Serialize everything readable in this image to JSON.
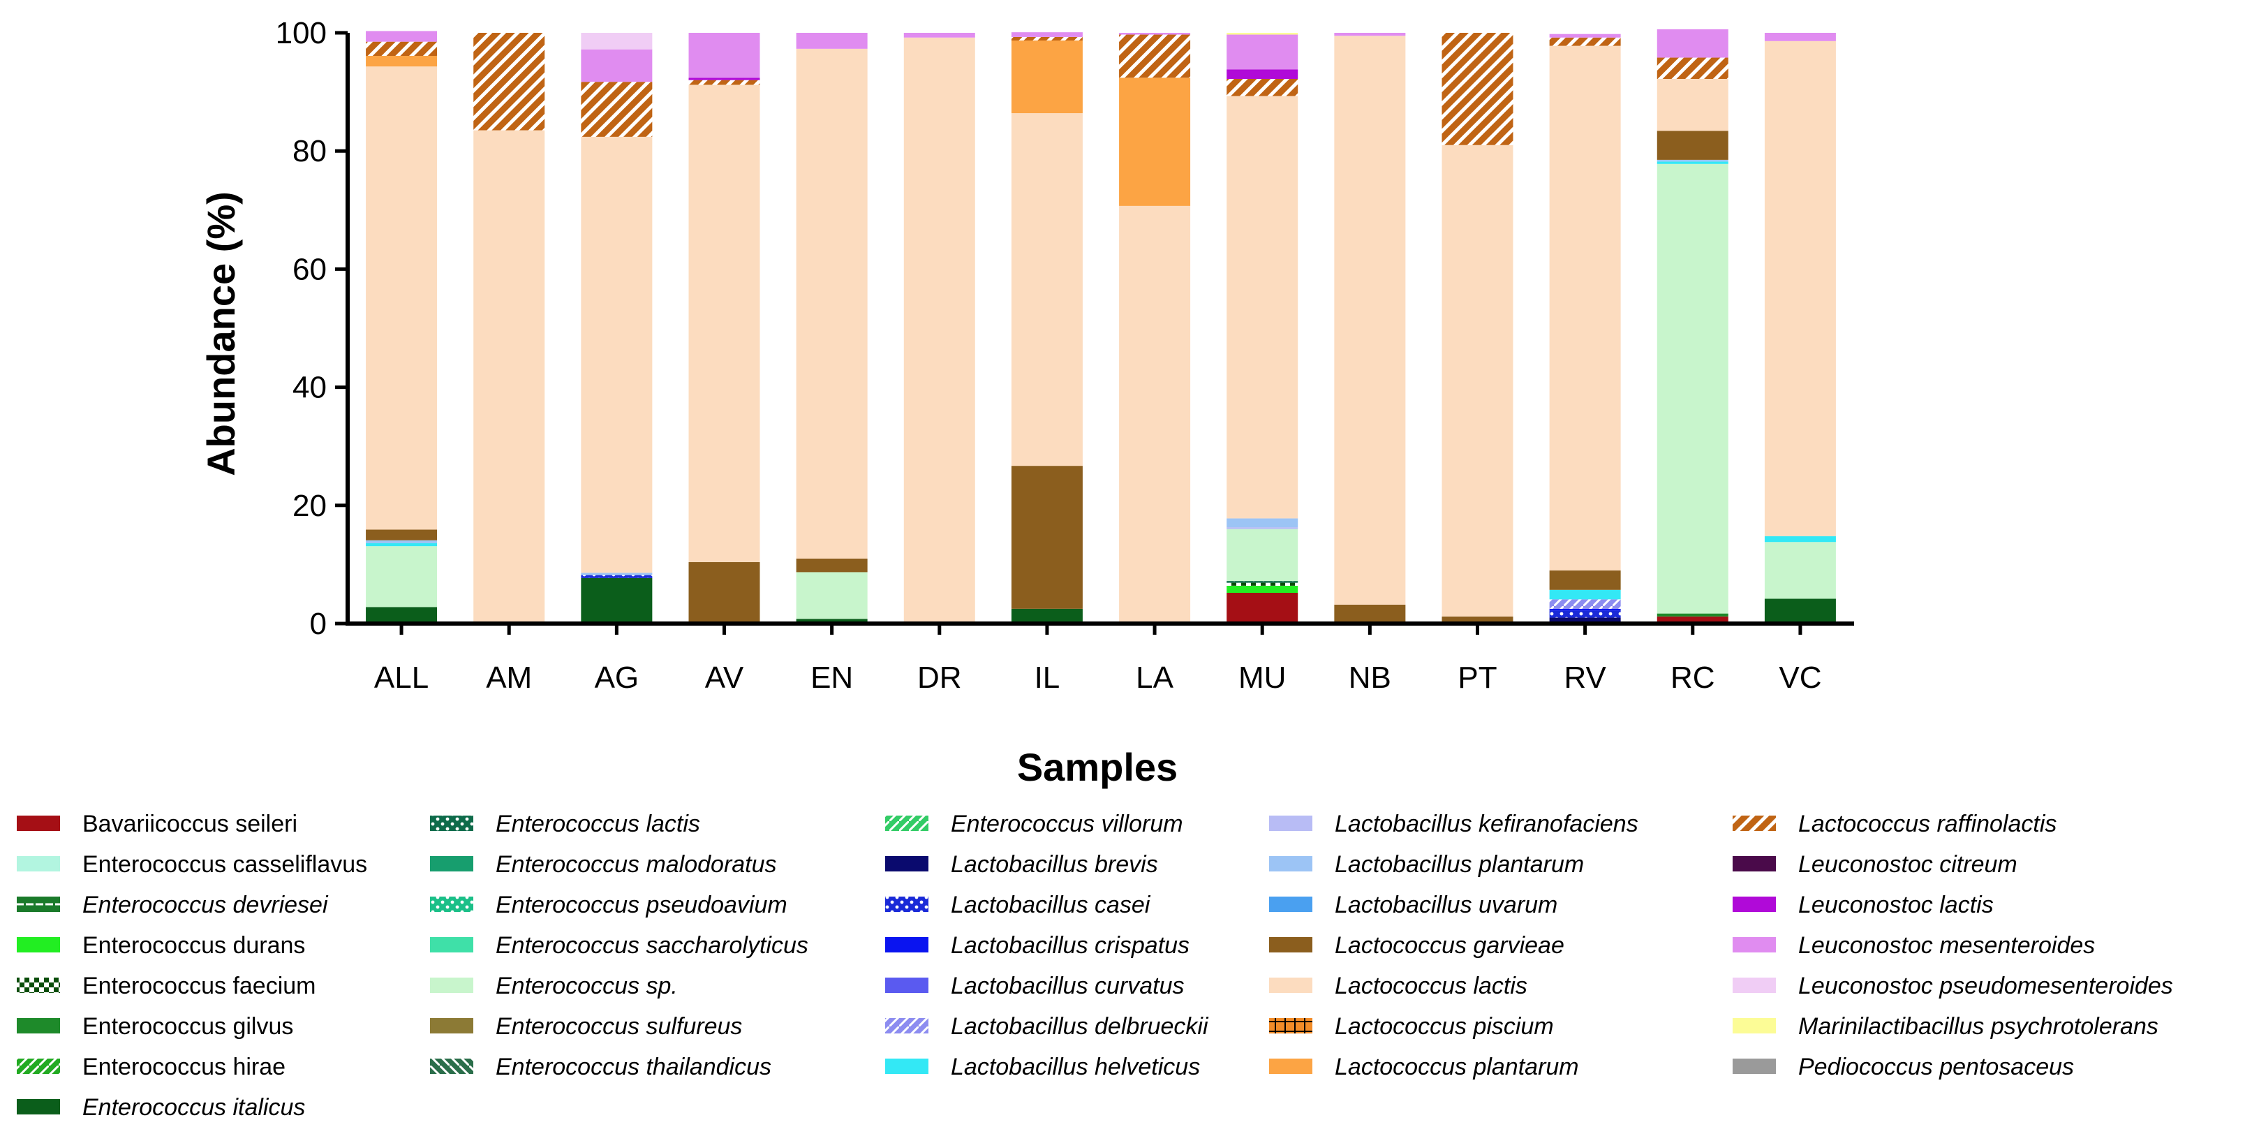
{
  "chart_data": {
    "type": "bar",
    "stacked": true,
    "title": "",
    "xlabel": "Samples",
    "ylabel": "Abundance (%)",
    "ylim": [
      0,
      100
    ],
    "yticks": [
      "0",
      "20",
      "40",
      "60",
      "80",
      "100"
    ],
    "grid": false,
    "legend_position": "bottom",
    "categories": [
      "ALL",
      "AM",
      "AG",
      "AV",
      "EN",
      "DR",
      "IL",
      "LA",
      "MU",
      "NB",
      "PT",
      "RV",
      "RC",
      "VC"
    ],
    "series": [
      {
        "name": "Bavariicoccus seileri",
        "italic": false,
        "color": "#a50f15",
        "pattern": "solid",
        "values": [
          0,
          0,
          0,
          0,
          0,
          0,
          0,
          0,
          5.2,
          0,
          0,
          0,
          1.2,
          0
        ]
      },
      {
        "name": "Enterococcus casseliflavus",
        "italic": false,
        "color": "#b2f5e0",
        "pattern": "solid",
        "values": [
          0,
          0,
          0,
          0,
          0,
          0,
          0,
          0,
          0,
          0,
          0,
          0,
          0,
          0
        ]
      },
      {
        "name": "Enterococcus devriesei",
        "italic": true,
        "color": "#1a7a2a",
        "pattern": "dash",
        "values": [
          0,
          0,
          0,
          0,
          0,
          0,
          0,
          0,
          0,
          0,
          0,
          0,
          0,
          0
        ]
      },
      {
        "name": "Enterococcus durans",
        "italic": false,
        "color": "#22ee22",
        "pattern": "solid",
        "values": [
          0,
          0,
          0,
          0,
          0,
          0,
          0,
          0,
          1.2,
          0,
          0,
          0,
          0,
          0
        ]
      },
      {
        "name": "Enterococcus faecium",
        "italic": false,
        "color": "#0a4d0a",
        "pattern": "checker",
        "values": [
          0,
          0,
          0,
          0,
          0,
          0,
          0,
          0,
          0.5,
          0,
          0,
          0,
          0,
          0
        ]
      },
      {
        "name": "Enterococcus gilvus",
        "italic": false,
        "color": "#1e8a2a",
        "pattern": "solid",
        "values": [
          0,
          0,
          0,
          0,
          0,
          0,
          0,
          0,
          0,
          0,
          0,
          0,
          0.5,
          0
        ]
      },
      {
        "name": "Enterococcus hirae",
        "italic": false,
        "color": "#22aa22",
        "pattern": "diag",
        "values": [
          0,
          0,
          0,
          0,
          0,
          0,
          0,
          0,
          0,
          0,
          0,
          0,
          0,
          0
        ]
      },
      {
        "name": "Enterococcus italicus",
        "italic": true,
        "color": "#0b5e1b",
        "pattern": "solid",
        "values": [
          2.8,
          0,
          7.7,
          0,
          0.8,
          0,
          2.5,
          0,
          0,
          0,
          0,
          0,
          0,
          4.2
        ]
      },
      {
        "name": "Enterococcus lactis",
        "italic": true,
        "color": "#0e6b4a",
        "pattern": "dots",
        "values": [
          0,
          0,
          0,
          0,
          0,
          0,
          0,
          0,
          0.3,
          0,
          0,
          0,
          0,
          0
        ]
      },
      {
        "name": "Enterococcus malodoratus",
        "italic": true,
        "color": "#179e6e",
        "pattern": "solid",
        "values": [
          0,
          0,
          0,
          0,
          0,
          0,
          0,
          0,
          0,
          0,
          0,
          0,
          0,
          0
        ]
      },
      {
        "name": "Enterococcus pseudoavium",
        "italic": true,
        "color": "#1bbf88",
        "pattern": "dots",
        "values": [
          0,
          0,
          0,
          0,
          0,
          0,
          0,
          0,
          0,
          0,
          0,
          0,
          0,
          0
        ]
      },
      {
        "name": "Enterococcus saccharolyticus",
        "italic": true,
        "color": "#3fe0a8",
        "pattern": "solid",
        "values": [
          0,
          0,
          0,
          0,
          0,
          0,
          0,
          0,
          0,
          0,
          0,
          0,
          0,
          0
        ]
      },
      {
        "name": "Enterococcus sp.",
        "italic": true,
        "color": "#c8f5cc",
        "pattern": "solid",
        "values": [
          10.3,
          0,
          0,
          0,
          7.9,
          0,
          0,
          0,
          8.8,
          0,
          0,
          0,
          76.1,
          9.6
        ]
      },
      {
        "name": "Enterococcus sulfureus",
        "italic": true,
        "color": "#8c7a35",
        "pattern": "solid",
        "values": [
          0,
          0,
          0,
          0,
          0,
          0,
          0,
          0,
          0,
          0,
          0,
          0,
          0,
          0
        ]
      },
      {
        "name": "Enterococcus thailandicus",
        "italic": true,
        "color": "#2a6e4a",
        "pattern": "revdiag",
        "values": [
          0,
          0,
          0,
          0,
          0,
          0,
          0,
          0,
          0,
          0,
          0,
          0,
          0,
          0
        ]
      },
      {
        "name": "Enterococcus villorum",
        "italic": true,
        "color": "#33cc66",
        "pattern": "diag",
        "values": [
          0,
          0,
          0,
          0,
          0,
          0,
          0,
          0,
          0,
          0,
          0,
          0,
          0,
          0
        ]
      },
      {
        "name": "Lactobacillus brevis",
        "italic": true,
        "color": "#0a0a6e",
        "pattern": "solid",
        "values": [
          0,
          0,
          0,
          0,
          0,
          0,
          0,
          0,
          0,
          0,
          0,
          1.0,
          0,
          0
        ]
      },
      {
        "name": "Lactobacillus casei",
        "italic": true,
        "color": "#1a2ad8",
        "pattern": "dots",
        "values": [
          0,
          0,
          0.5,
          0,
          0,
          0,
          0,
          0,
          0,
          0,
          0,
          1.2,
          0,
          0
        ]
      },
      {
        "name": "Lactobacillus crispatus",
        "italic": true,
        "color": "#0a14f0",
        "pattern": "solid",
        "values": [
          0,
          0,
          0,
          0,
          0,
          0,
          0,
          0,
          0,
          0,
          0,
          0.3,
          0,
          0
        ]
      },
      {
        "name": "Lactobacillus curvatus",
        "italic": true,
        "color": "#5a5af0",
        "pattern": "solid",
        "values": [
          0,
          0,
          0,
          0,
          0,
          0,
          0,
          0,
          0,
          0,
          0,
          0,
          0,
          0
        ]
      },
      {
        "name": "Lactobacillus delbrueckii",
        "italic": true,
        "color": "#8c8cf0",
        "pattern": "diag",
        "values": [
          0,
          0,
          0,
          0,
          0,
          0,
          0,
          0,
          0,
          0,
          0,
          1.6,
          0,
          0
        ]
      },
      {
        "name": "Lactobacillus helveticus",
        "italic": true,
        "color": "#33e8f5",
        "pattern": "solid",
        "values": [
          0.5,
          0,
          0,
          0,
          0,
          0,
          0,
          0,
          0,
          0,
          0,
          1.6,
          0.4,
          1.0
        ]
      },
      {
        "name": "Lactobacillus kefiranofaciens",
        "italic": true,
        "color": "#b8bcf5",
        "pattern": "solid",
        "values": [
          0,
          0,
          0,
          0,
          0,
          0,
          0,
          0,
          0.3,
          0,
          0,
          0,
          0,
          0
        ]
      },
      {
        "name": "Lactobacillus plantarum",
        "italic": true,
        "color": "#9cc4f5",
        "pattern": "solid",
        "values": [
          0.5,
          0,
          0.4,
          0,
          0,
          0,
          0,
          0,
          1.5,
          0,
          0,
          0,
          0.3,
          0
        ]
      },
      {
        "name": "Lactobacillus uvarum",
        "italic": true,
        "color": "#4aa0f0",
        "pattern": "solid",
        "values": [
          0,
          0,
          0,
          0,
          0,
          0,
          0,
          0,
          0,
          0,
          0,
          0,
          0,
          0
        ]
      },
      {
        "name": "Lactococcus garvieae",
        "italic": true,
        "color": "#8b5e1e",
        "pattern": "solid",
        "values": [
          1.8,
          0,
          0,
          10.4,
          2.3,
          0,
          24.2,
          0,
          0,
          3.2,
          1.2,
          3.3,
          4.9,
          0
        ]
      },
      {
        "name": "Lactococcus lactis",
        "italic": true,
        "color": "#fcdcbf",
        "pattern": "solid",
        "values": [
          78.4,
          83.5,
          73.8,
          80.8,
          86.3,
          99.2,
          59.7,
          70.7,
          71.5,
          96.3,
          79.8,
          88.8,
          8.8,
          83.8
        ]
      },
      {
        "name": "Lactococcus piscium",
        "italic": true,
        "color": "#f28c28",
        "pattern": "cross",
        "values": [
          0,
          0,
          0,
          0,
          0,
          0,
          0,
          0,
          0,
          0,
          0,
          0,
          0,
          0
        ]
      },
      {
        "name": "Lactococcus plantarum",
        "italic": true,
        "color": "#fca444",
        "pattern": "solid",
        "values": [
          1.8,
          0,
          0,
          0,
          0,
          0,
          12.3,
          21.7,
          0,
          0,
          0,
          0,
          0,
          0
        ]
      },
      {
        "name": "Lactococcus raffinolactis",
        "italic": true,
        "color": "#c06414",
        "pattern": "hatch",
        "values": [
          2.4,
          16.5,
          9.3,
          0.8,
          0,
          0,
          0.6,
          7.3,
          2.9,
          0,
          19.0,
          1.4,
          3.6,
          0
        ]
      },
      {
        "name": "Leuconostoc citreum",
        "italic": true,
        "color": "#4a0a4a",
        "pattern": "solid",
        "values": [
          0,
          0,
          0,
          0,
          0,
          0,
          0,
          0,
          0,
          0,
          0,
          0,
          0,
          0
        ]
      },
      {
        "name": "Leuconostoc lactis",
        "italic": true,
        "color": "#b00ad8",
        "pattern": "solid",
        "values": [
          0,
          0,
          0,
          0.4,
          0,
          0,
          0,
          0,
          1.6,
          0,
          0,
          0,
          0,
          0
        ]
      },
      {
        "name": "Leuconostoc mesenteroides",
        "italic": true,
        "color": "#e08cf0",
        "pattern": "solid",
        "values": [
          1.8,
          0,
          5.5,
          7.6,
          2.7,
          0.8,
          0.8,
          0.3,
          5.9,
          0.5,
          0,
          0.6,
          4.8,
          1.4
        ]
      },
      {
        "name": "Leuconostoc pseudomesenteroides",
        "italic": true,
        "color": "#f0cdf5",
        "pattern": "solid",
        "values": [
          0,
          0,
          2.8,
          0,
          0,
          0,
          0,
          0,
          0,
          0,
          0,
          0,
          0,
          0
        ]
      },
      {
        "name": "Marinilactibacillus psychrotolerans",
        "italic": true,
        "color": "#fcfc96",
        "pattern": "solid",
        "values": [
          0,
          0,
          0,
          0,
          0,
          0,
          0,
          0,
          0.3,
          0,
          0,
          0,
          0,
          0
        ]
      },
      {
        "name": "Pediococcus pentosaceus",
        "italic": true,
        "color": "#9a9a9a",
        "pattern": "solid",
        "values": [
          0,
          0,
          0,
          0,
          0,
          0,
          0,
          0,
          0,
          0,
          0,
          0,
          0,
          0
        ]
      }
    ]
  }
}
